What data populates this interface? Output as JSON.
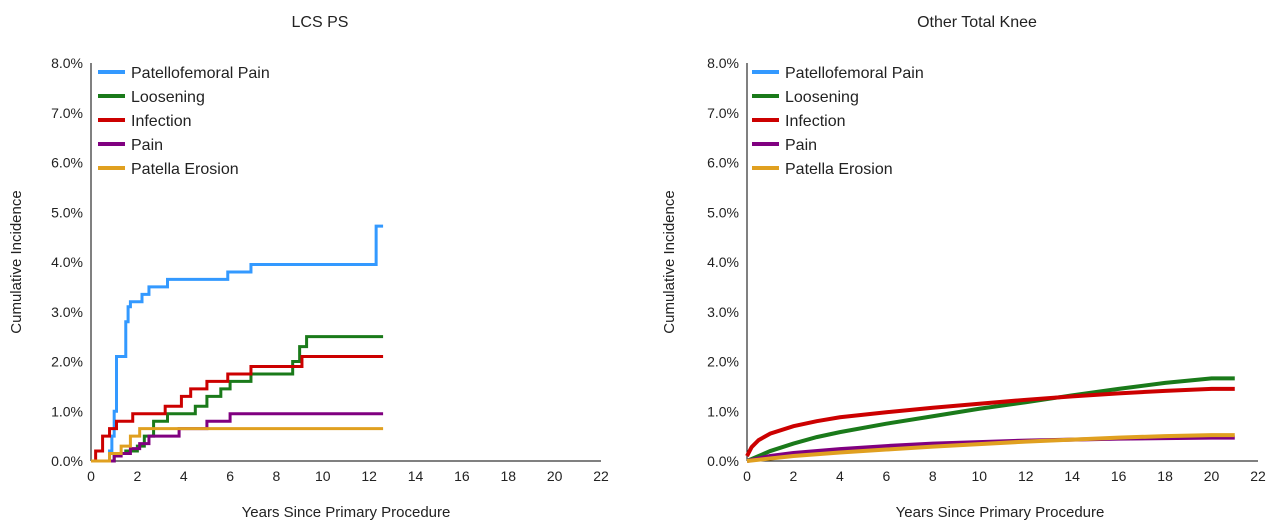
{
  "chart_data": [
    {
      "type": "line",
      "title": "LCS PS",
      "xlabel": "Years Since Primary Procedure",
      "ylabel": "Cumulative Incidence",
      "xlim": [
        0,
        22
      ],
      "ylim": [
        0,
        8
      ],
      "x_ticks": [
        0,
        2,
        4,
        6,
        8,
        10,
        12,
        14,
        16,
        18,
        20,
        22
      ],
      "x_tick_labels": [
        "0",
        "2",
        "4",
        "6",
        "8",
        "10",
        "12",
        "14",
        "16",
        "18",
        "20",
        "22"
      ],
      "y_ticks": [
        0,
        1,
        2,
        3,
        4,
        5,
        6,
        7,
        8
      ],
      "y_tick_labels": [
        "0.0%",
        "1.0%",
        "2.0%",
        "3.0%",
        "4.0%",
        "5.0%",
        "6.0%",
        "7.0%",
        "8.0%"
      ],
      "grid": false,
      "legend_position": "top-left",
      "step": true,
      "series": [
        {
          "name": "Patellofemoral Pain",
          "color": "#3399ff",
          "x": [
            0,
            0.8,
            0.9,
            1.0,
            1.1,
            1.2,
            1.5,
            1.6,
            1.7,
            1.75,
            2.2,
            2.5,
            3.3,
            5.9,
            6.9,
            12.3,
            12.6
          ],
          "y": [
            0,
            0.2,
            0.5,
            1.0,
            2.1,
            2.1,
            2.8,
            3.1,
            3.2,
            3.2,
            3.35,
            3.5,
            3.65,
            3.8,
            3.95,
            4.72,
            4.72
          ]
        },
        {
          "name": "Loosening",
          "color": "#1a7a1a",
          "x": [
            0,
            1.0,
            1.5,
            2.0,
            2.3,
            2.7,
            3.3,
            4.5,
            5.0,
            5.6,
            6.0,
            6.9,
            8.7,
            9.0,
            9.3,
            12.6
          ],
          "y": [
            0,
            0.15,
            0.2,
            0.3,
            0.5,
            0.8,
            0.95,
            1.1,
            1.3,
            1.45,
            1.6,
            1.75,
            2.0,
            2.3,
            2.5,
            2.5
          ]
        },
        {
          "name": "Infection",
          "color": "#cc0000",
          "x": [
            0,
            0.2,
            0.5,
            0.8,
            1.1,
            1.8,
            3.2,
            3.9,
            4.3,
            5.0,
            5.5,
            5.9,
            6.9,
            9.1,
            12.6
          ],
          "y": [
            0,
            0.2,
            0.5,
            0.65,
            0.8,
            0.95,
            1.1,
            1.3,
            1.45,
            1.6,
            1.6,
            1.75,
            1.9,
            2.1,
            2.1
          ]
        },
        {
          "name": "Pain",
          "color": "#800080",
          "x": [
            0,
            1.0,
            1.3,
            1.7,
            2.1,
            2.5,
            3.8,
            5.0,
            6.0,
            12.6
          ],
          "y": [
            0,
            0.1,
            0.15,
            0.25,
            0.35,
            0.5,
            0.65,
            0.8,
            0.95,
            0.95
          ]
        },
        {
          "name": "Patella Erosion",
          "color": "#e0a020",
          "x": [
            0,
            0.8,
            1.3,
            1.7,
            2.1,
            12.6
          ],
          "y": [
            0,
            0.15,
            0.3,
            0.5,
            0.65,
            0.65
          ]
        }
      ]
    },
    {
      "type": "line",
      "title": "Other Total Knee",
      "xlabel": "Years Since Primary Procedure",
      "ylabel": "Cumulative Incidence",
      "xlim": [
        0,
        22
      ],
      "ylim": [
        0,
        8
      ],
      "x_ticks": [
        0,
        2,
        4,
        6,
        8,
        10,
        12,
        14,
        16,
        18,
        20,
        22
      ],
      "x_tick_labels": [
        "0",
        "2",
        "4",
        "6",
        "8",
        "10",
        "12",
        "14",
        "16",
        "18",
        "20",
        "22"
      ],
      "y_ticks": [
        0,
        1,
        2,
        3,
        4,
        5,
        6,
        7,
        8
      ],
      "y_tick_labels": [
        "0.0%",
        "1.0%",
        "2.0%",
        "3.0%",
        "4.0%",
        "5.0%",
        "6.0%",
        "7.0%",
        "8.0%"
      ],
      "grid": false,
      "legend_position": "top-left",
      "step": false,
      "series": [
        {
          "name": "Patellofemoral Pain",
          "color": "#3399ff",
          "x": [],
          "y": []
        },
        {
          "name": "Loosening",
          "color": "#1a7a1a",
          "x": [
            0,
            1,
            2,
            3,
            4,
            6,
            8,
            10,
            12,
            14,
            16,
            18,
            20,
            21
          ],
          "y": [
            0,
            0.2,
            0.35,
            0.48,
            0.58,
            0.75,
            0.9,
            1.05,
            1.18,
            1.32,
            1.45,
            1.57,
            1.66,
            1.66
          ]
        },
        {
          "name": "Infection",
          "color": "#cc0000",
          "x": [
            0,
            0.2,
            0.5,
            1,
            2,
            3,
            4,
            6,
            8,
            10,
            12,
            14,
            16,
            18,
            20,
            21
          ],
          "y": [
            0.1,
            0.28,
            0.42,
            0.55,
            0.7,
            0.8,
            0.88,
            0.98,
            1.07,
            1.15,
            1.23,
            1.3,
            1.36,
            1.41,
            1.45,
            1.45
          ]
        },
        {
          "name": "Pain",
          "color": "#800080",
          "x": [
            0,
            1,
            2,
            4,
            6,
            8,
            10,
            12,
            14,
            16,
            18,
            20,
            21
          ],
          "y": [
            0,
            0.1,
            0.16,
            0.24,
            0.3,
            0.35,
            0.38,
            0.41,
            0.43,
            0.45,
            0.46,
            0.47,
            0.47
          ]
        },
        {
          "name": "Patella Erosion",
          "color": "#e0a020",
          "x": [
            0,
            1,
            2,
            4,
            6,
            8,
            10,
            12,
            14,
            16,
            18,
            20,
            21
          ],
          "y": [
            0,
            0.05,
            0.1,
            0.17,
            0.23,
            0.29,
            0.34,
            0.39,
            0.43,
            0.47,
            0.5,
            0.52,
            0.52
          ]
        }
      ]
    }
  ]
}
